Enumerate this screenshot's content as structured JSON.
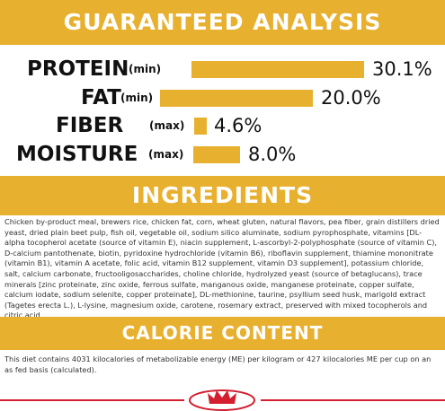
{
  "header": {
    "title": "GUARANTEED ANALYSIS"
  },
  "analysis": [
    {
      "name": "PROTEIN",
      "qualifier": "(min)",
      "value": "30.1%"
    },
    {
      "name": "FAT",
      "qualifier": "(min)",
      "value": "20.0%"
    },
    {
      "name": "FIBER",
      "qualifier": "(max)",
      "value": "4.6%"
    },
    {
      "name": "MOISTURE",
      "qualifier": "(max)",
      "value": "8.0%"
    }
  ],
  "ingredients": {
    "title": "INGREDIENTS",
    "text": "Chicken by-product meal, brewers rice, chicken fat, corn, wheat gluten, natural flavors, pea fiber, grain distillers dried yeast, dried plain beet pulp, fish oil, vegetable oil, sodium silico aluminate, sodium pyrophosphate, vitamins [DL-alpha tocopherol acetate (source of vitamin E), niacin supplement, L-ascorbyl-2-polyphosphate (source of vitamin C), D-calcium pantothenate, biotin, pyridoxine hydrochloride (vitamin B6), riboflavin supplement, thiamine mononitrate (vitamin B1), vitamin A acetate, folic acid, vitamin B12 supplement, vitamin D3 supplement], potassium chloride, salt, calcium carbonate, fructooligosaccharides, choline chloride, hydrolyzed yeast (source of betaglucans), trace minerals [zinc proteinate, zinc oxide, ferrous sulfate, manganous oxide, manganese proteinate, copper sulfate, calcium iodate, sodium selenite, copper proteinate], DL-methionine, taurine, psyllium seed husk, marigold extract (Tagetes erecta L.), L-lysine, magnesium oxide, carotene, rosemary extract, preserved with mixed tocopherols and citric acid."
  },
  "calories": {
    "title": "CALORIE CONTENT",
    "text": "This diet contains 4031 kilocalories of metabolizable energy (ME) per kilogram or 427 kilocalories ME per cup on an as fed basis (calculated)."
  }
}
